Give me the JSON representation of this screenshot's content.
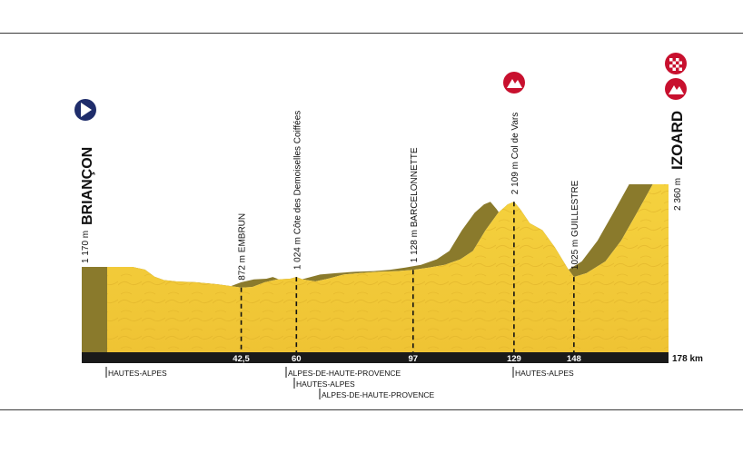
{
  "start": {
    "name": "BRIANÇON",
    "altitude": "1 170 m",
    "icon": "start-arrow-icon",
    "color": "#1f2d6b"
  },
  "finish": {
    "name": "IZOARD",
    "altitude": "2 360 m",
    "icons": [
      "finish-flag-icon",
      "mountain-summit-icon"
    ],
    "color": "#c8102e"
  },
  "points": [
    {
      "km_label": "42,5",
      "km": 42.5,
      "alt": 872,
      "alt_label": "872 m",
      "name": "EMBRUN"
    },
    {
      "km_label": "60",
      "km": 60,
      "alt": 1024,
      "alt_label": "1 024 m",
      "name": "Côte des Demoiselles Coiffées"
    },
    {
      "km_label": "97",
      "km": 97,
      "alt": 1128,
      "alt_label": "1 128 m",
      "name": "BARCELONNETTE"
    },
    {
      "km_label": "129",
      "km": 129,
      "alt": 2109,
      "alt_label": "2 109 m",
      "name": "Col de Vars",
      "icon": "mountain-summit-icon"
    },
    {
      "km_label": "148",
      "km": 148,
      "alt": 1025,
      "alt_label": "1025 m",
      "name": "GUILLESTRE"
    }
  ],
  "total_distance": "178 km",
  "departments": [
    {
      "label": "HAUTES-ALPES"
    },
    {
      "label": "ALPES-DE-HAUTE-PROVENCE"
    },
    {
      "label": "HAUTES-ALPES"
    },
    {
      "label": "ALPES-DE-HAUTE-PROVENCE"
    },
    {
      "label": "HAUTES-ALPES"
    }
  ],
  "chart_data": {
    "type": "area",
    "x_unit": "km",
    "y_unit": "m",
    "xlim": [
      0,
      178
    ],
    "x": [
      0,
      8,
      12,
      15,
      18,
      22,
      28,
      35,
      42.5,
      46,
      50,
      54,
      58,
      60,
      62,
      66,
      70,
      75,
      80,
      86,
      92,
      97,
      102,
      107,
      112,
      116,
      120,
      124,
      127,
      129,
      131,
      134,
      138,
      142,
      146,
      148,
      152,
      158,
      163,
      168,
      173,
      178
    ],
    "y": [
      1170,
      1170,
      1130,
      1030,
      980,
      960,
      950,
      920,
      872,
      880,
      950,
      990,
      1000,
      1024,
      990,
      960,
      1000,
      1060,
      1080,
      1100,
      1110,
      1128,
      1160,
      1200,
      1280,
      1400,
      1700,
      1950,
      2070,
      2109,
      2000,
      1800,
      1700,
      1450,
      1150,
      1025,
      1080,
      1250,
      1550,
      1950,
      2360,
      2360
    ],
    "colors": {
      "fill": "#f1c93a",
      "side": "#8a7a2c",
      "base": "#1a1a1a",
      "mountain_icon": "#c8102e"
    }
  }
}
